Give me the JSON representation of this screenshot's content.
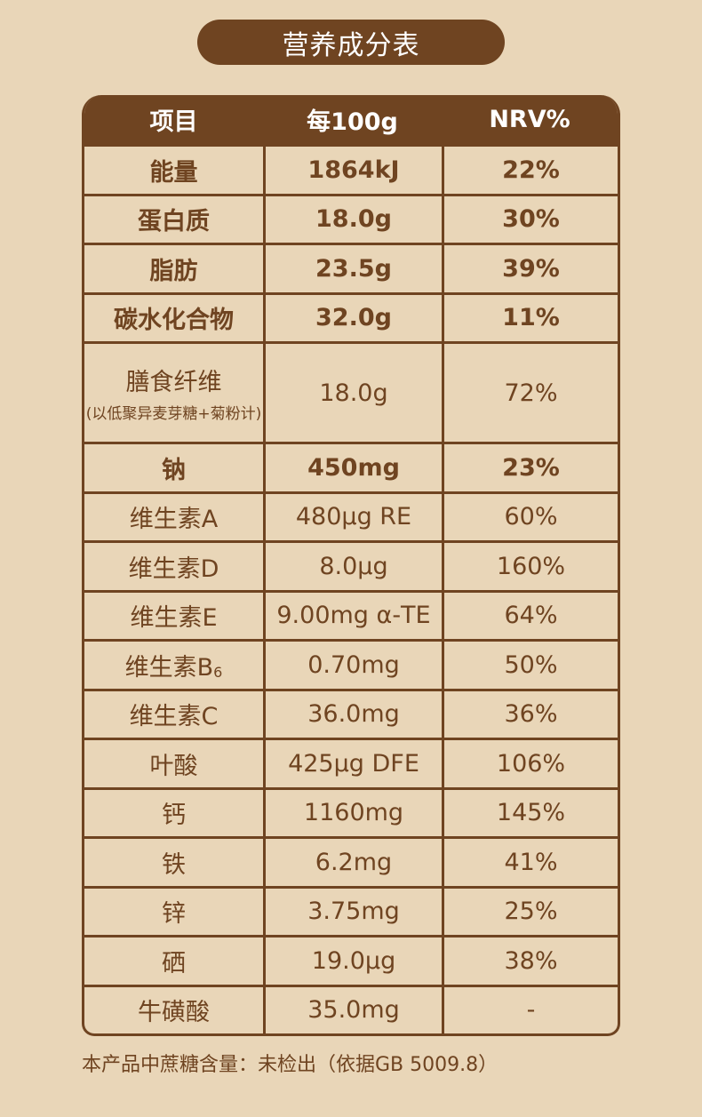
{
  "title": "营养成分表",
  "headers": [
    "项目",
    "每100g",
    "NRV%"
  ],
  "rows": [
    {
      "name": "能量",
      "sub": "",
      "note": "",
      "value": "1864kJ",
      "nrv": "22%",
      "bold": true
    },
    {
      "name": "蛋白质",
      "sub": "",
      "note": "",
      "value": "18.0g",
      "nrv": "30%",
      "bold": true
    },
    {
      "name": "脂肪",
      "sub": "",
      "note": "",
      "value": "23.5g",
      "nrv": "39%",
      "bold": true
    },
    {
      "name": "碳水化合物",
      "sub": "",
      "note": "",
      "value": "32.0g",
      "nrv": "11%",
      "bold": true
    },
    {
      "name": "膳食纤维",
      "sub": "",
      "note": "(以低聚异麦芽糖+菊粉计)",
      "value": "18.0g",
      "nrv": "72%",
      "bold": false
    },
    {
      "name": "钠",
      "sub": "",
      "note": "",
      "value": "450mg",
      "nrv": "23%",
      "bold": true
    },
    {
      "name": "维生素A",
      "sub": "",
      "note": "",
      "value": "480μg RE",
      "nrv": "60%",
      "bold": false
    },
    {
      "name": "维生素D",
      "sub": "",
      "note": "",
      "value": "8.0μg",
      "nrv": "160%",
      "bold": false
    },
    {
      "name": "维生素E",
      "sub": "",
      "note": "",
      "value": "9.00mg α-TE",
      "nrv": "64%",
      "bold": false
    },
    {
      "name": "维生素B",
      "sub": "6",
      "note": "",
      "value": "0.70mg",
      "nrv": "50%",
      "bold": false
    },
    {
      "name": "维生素C",
      "sub": "",
      "note": "",
      "value": "36.0mg",
      "nrv": "36%",
      "bold": false
    },
    {
      "name": "叶酸",
      "sub": "",
      "note": "",
      "value": "425μg DFE",
      "nrv": "106%",
      "bold": false
    },
    {
      "name": "钙",
      "sub": "",
      "note": "",
      "value": "1160mg",
      "nrv": "145%",
      "bold": false
    },
    {
      "name": "铁",
      "sub": "",
      "note": "",
      "value": "6.2mg",
      "nrv": "41%",
      "bold": false
    },
    {
      "name": "锌",
      "sub": "",
      "note": "",
      "value": "3.75mg",
      "nrv": "25%",
      "bold": false
    },
    {
      "name": "硒",
      "sub": "",
      "note": "",
      "value": "19.0μg",
      "nrv": "38%",
      "bold": false
    },
    {
      "name": "牛磺酸",
      "sub": "",
      "note": "",
      "value": "35.0mg",
      "nrv": "-",
      "bold": false
    }
  ],
  "footer": "本产品中蔗糖含量：未检出（依据GB 5009.8）",
  "colors": {
    "background": "#e9d6b8",
    "brown": "#6f4421"
  }
}
